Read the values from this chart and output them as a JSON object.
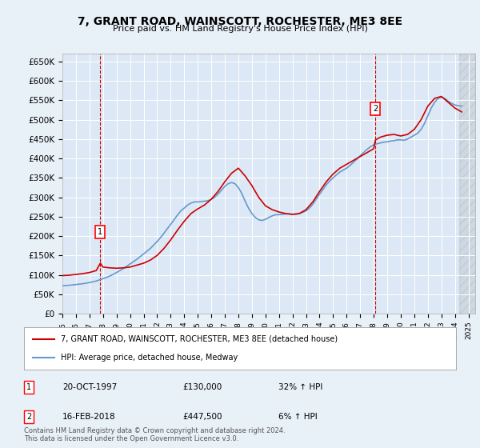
{
  "title_line1": "7, GRANT ROAD, WAINSCOTT, ROCHESTER, ME3 8EE",
  "title_line2": "Price paid vs. HM Land Registry's House Price Index (HPI)",
  "ylabel": "",
  "background_color": "#e8f0f8",
  "plot_bg_color": "#dce8f5",
  "ylim": [
    0,
    670000
  ],
  "yticks": [
    0,
    50000,
    100000,
    150000,
    200000,
    250000,
    300000,
    350000,
    400000,
    450000,
    500000,
    550000,
    600000,
    650000
  ],
  "ytick_labels": [
    "£0",
    "£50K",
    "£100K",
    "£150K",
    "£200K",
    "£250K",
    "£300K",
    "£350K",
    "£400K",
    "£450K",
    "£500K",
    "£550K",
    "£600K",
    "£650K"
  ],
  "xlim_start": 1995.0,
  "xlim_end": 2025.5,
  "sale1_x": 1997.8,
  "sale1_y": 130000,
  "sale2_x": 2018.12,
  "sale2_y": 447500,
  "sale1_label": "1",
  "sale2_label": "2",
  "annotation1_date": "20-OCT-1997",
  "annotation1_price": "£130,000",
  "annotation1_hpi": "32% ↑ HPI",
  "annotation2_date": "16-FEB-2018",
  "annotation2_price": "£447,500",
  "annotation2_hpi": "6% ↑ HPI",
  "legend_line1": "7, GRANT ROAD, WAINSCOTT, ROCHESTER, ME3 8EE (detached house)",
  "legend_line2": "HPI: Average price, detached house, Medway",
  "line_color_red": "#cc0000",
  "line_color_blue": "#6699cc",
  "footnote": "Contains HM Land Registry data © Crown copyright and database right 2024.\nThis data is licensed under the Open Government Licence v3.0.",
  "hpi_years": [
    1995,
    1995.25,
    1995.5,
    1995.75,
    1996,
    1996.25,
    1996.5,
    1996.75,
    1997,
    1997.25,
    1997.5,
    1997.75,
    1998,
    1998.25,
    1998.5,
    1998.75,
    1999,
    1999.25,
    1999.5,
    1999.75,
    2000,
    2000.25,
    2000.5,
    2000.75,
    2001,
    2001.25,
    2001.5,
    2001.75,
    2002,
    2002.25,
    2002.5,
    2002.75,
    2003,
    2003.25,
    2003.5,
    2003.75,
    2004,
    2004.25,
    2004.5,
    2004.75,
    2005,
    2005.25,
    2005.5,
    2005.75,
    2006,
    2006.25,
    2006.5,
    2006.75,
    2007,
    2007.25,
    2007.5,
    2007.75,
    2008,
    2008.25,
    2008.5,
    2008.75,
    2009,
    2009.25,
    2009.5,
    2009.75,
    2010,
    2010.25,
    2010.5,
    2010.75,
    2011,
    2011.25,
    2011.5,
    2011.75,
    2012,
    2012.25,
    2012.5,
    2012.75,
    2013,
    2013.25,
    2013.5,
    2013.75,
    2014,
    2014.25,
    2014.5,
    2014.75,
    2015,
    2015.25,
    2015.5,
    2015.75,
    2016,
    2016.25,
    2016.5,
    2016.75,
    2017,
    2017.25,
    2017.5,
    2017.75,
    2018,
    2018.25,
    2018.5,
    2018.75,
    2019,
    2019.25,
    2019.5,
    2019.75,
    2020,
    2020.25,
    2020.5,
    2020.75,
    2021,
    2021.25,
    2021.5,
    2021.75,
    2022,
    2022.25,
    2022.5,
    2022.75,
    2023,
    2023.25,
    2023.5,
    2023.75,
    2024,
    2024.25,
    2024.5
  ],
  "hpi_values": [
    72000,
    72500,
    73000,
    74000,
    75000,
    76000,
    77000,
    78500,
    80000,
    82000,
    84000,
    87000,
    90000,
    93000,
    97000,
    101000,
    106000,
    111000,
    116000,
    122000,
    128000,
    134000,
    140000,
    147000,
    154000,
    161000,
    168000,
    177000,
    186000,
    196000,
    207000,
    219000,
    230000,
    242000,
    254000,
    265000,
    272000,
    280000,
    285000,
    288000,
    288000,
    289000,
    290000,
    291000,
    295000,
    300000,
    308000,
    318000,
    328000,
    335000,
    338000,
    335000,
    325000,
    310000,
    290000,
    272000,
    258000,
    248000,
    242000,
    240000,
    243000,
    248000,
    252000,
    255000,
    255000,
    256000,
    257000,
    257000,
    256000,
    256000,
    258000,
    261000,
    265000,
    272000,
    282000,
    295000,
    308000,
    320000,
    332000,
    342000,
    350000,
    358000,
    365000,
    370000,
    375000,
    382000,
    390000,
    398000,
    407000,
    415000,
    423000,
    430000,
    435000,
    438000,
    440000,
    442000,
    443000,
    445000,
    446000,
    448000,
    448000,
    447000,
    450000,
    455000,
    460000,
    465000,
    475000,
    490000,
    510000,
    530000,
    545000,
    555000,
    558000,
    555000,
    548000,
    542000,
    538000,
    536000,
    535000
  ],
  "red_years": [
    1995,
    1995.5,
    1996,
    1996.5,
    1997,
    1997.5,
    1997.8,
    1998,
    1998.5,
    1999,
    1999.5,
    2000,
    2000.5,
    2001,
    2001.5,
    2002,
    2002.5,
    2003,
    2003.5,
    2004,
    2004.5,
    2005,
    2005.5,
    2006,
    2006.5,
    2007,
    2007.5,
    2008,
    2008.5,
    2009,
    2009.5,
    2010,
    2010.5,
    2011,
    2011.5,
    2012,
    2012.5,
    2013,
    2013.5,
    2014,
    2014.5,
    2015,
    2015.5,
    2016,
    2016.5,
    2017,
    2017.5,
    2018,
    2018.12,
    2018.5,
    2019,
    2019.5,
    2020,
    2020.5,
    2021,
    2021.5,
    2022,
    2022.5,
    2023,
    2023.5,
    2024,
    2024.5
  ],
  "red_values": [
    98000,
    99000,
    101000,
    103000,
    106000,
    111000,
    130000,
    120000,
    118000,
    117000,
    118000,
    120000,
    125000,
    130000,
    138000,
    150000,
    168000,
    190000,
    215000,
    238000,
    258000,
    270000,
    280000,
    295000,
    315000,
    340000,
    362000,
    375000,
    355000,
    330000,
    300000,
    278000,
    268000,
    262000,
    258000,
    256000,
    258000,
    268000,
    288000,
    315000,
    340000,
    360000,
    375000,
    385000,
    395000,
    405000,
    415000,
    425000,
    447500,
    455000,
    460000,
    462000,
    458000,
    462000,
    475000,
    500000,
    535000,
    555000,
    560000,
    545000,
    530000,
    520000
  ]
}
